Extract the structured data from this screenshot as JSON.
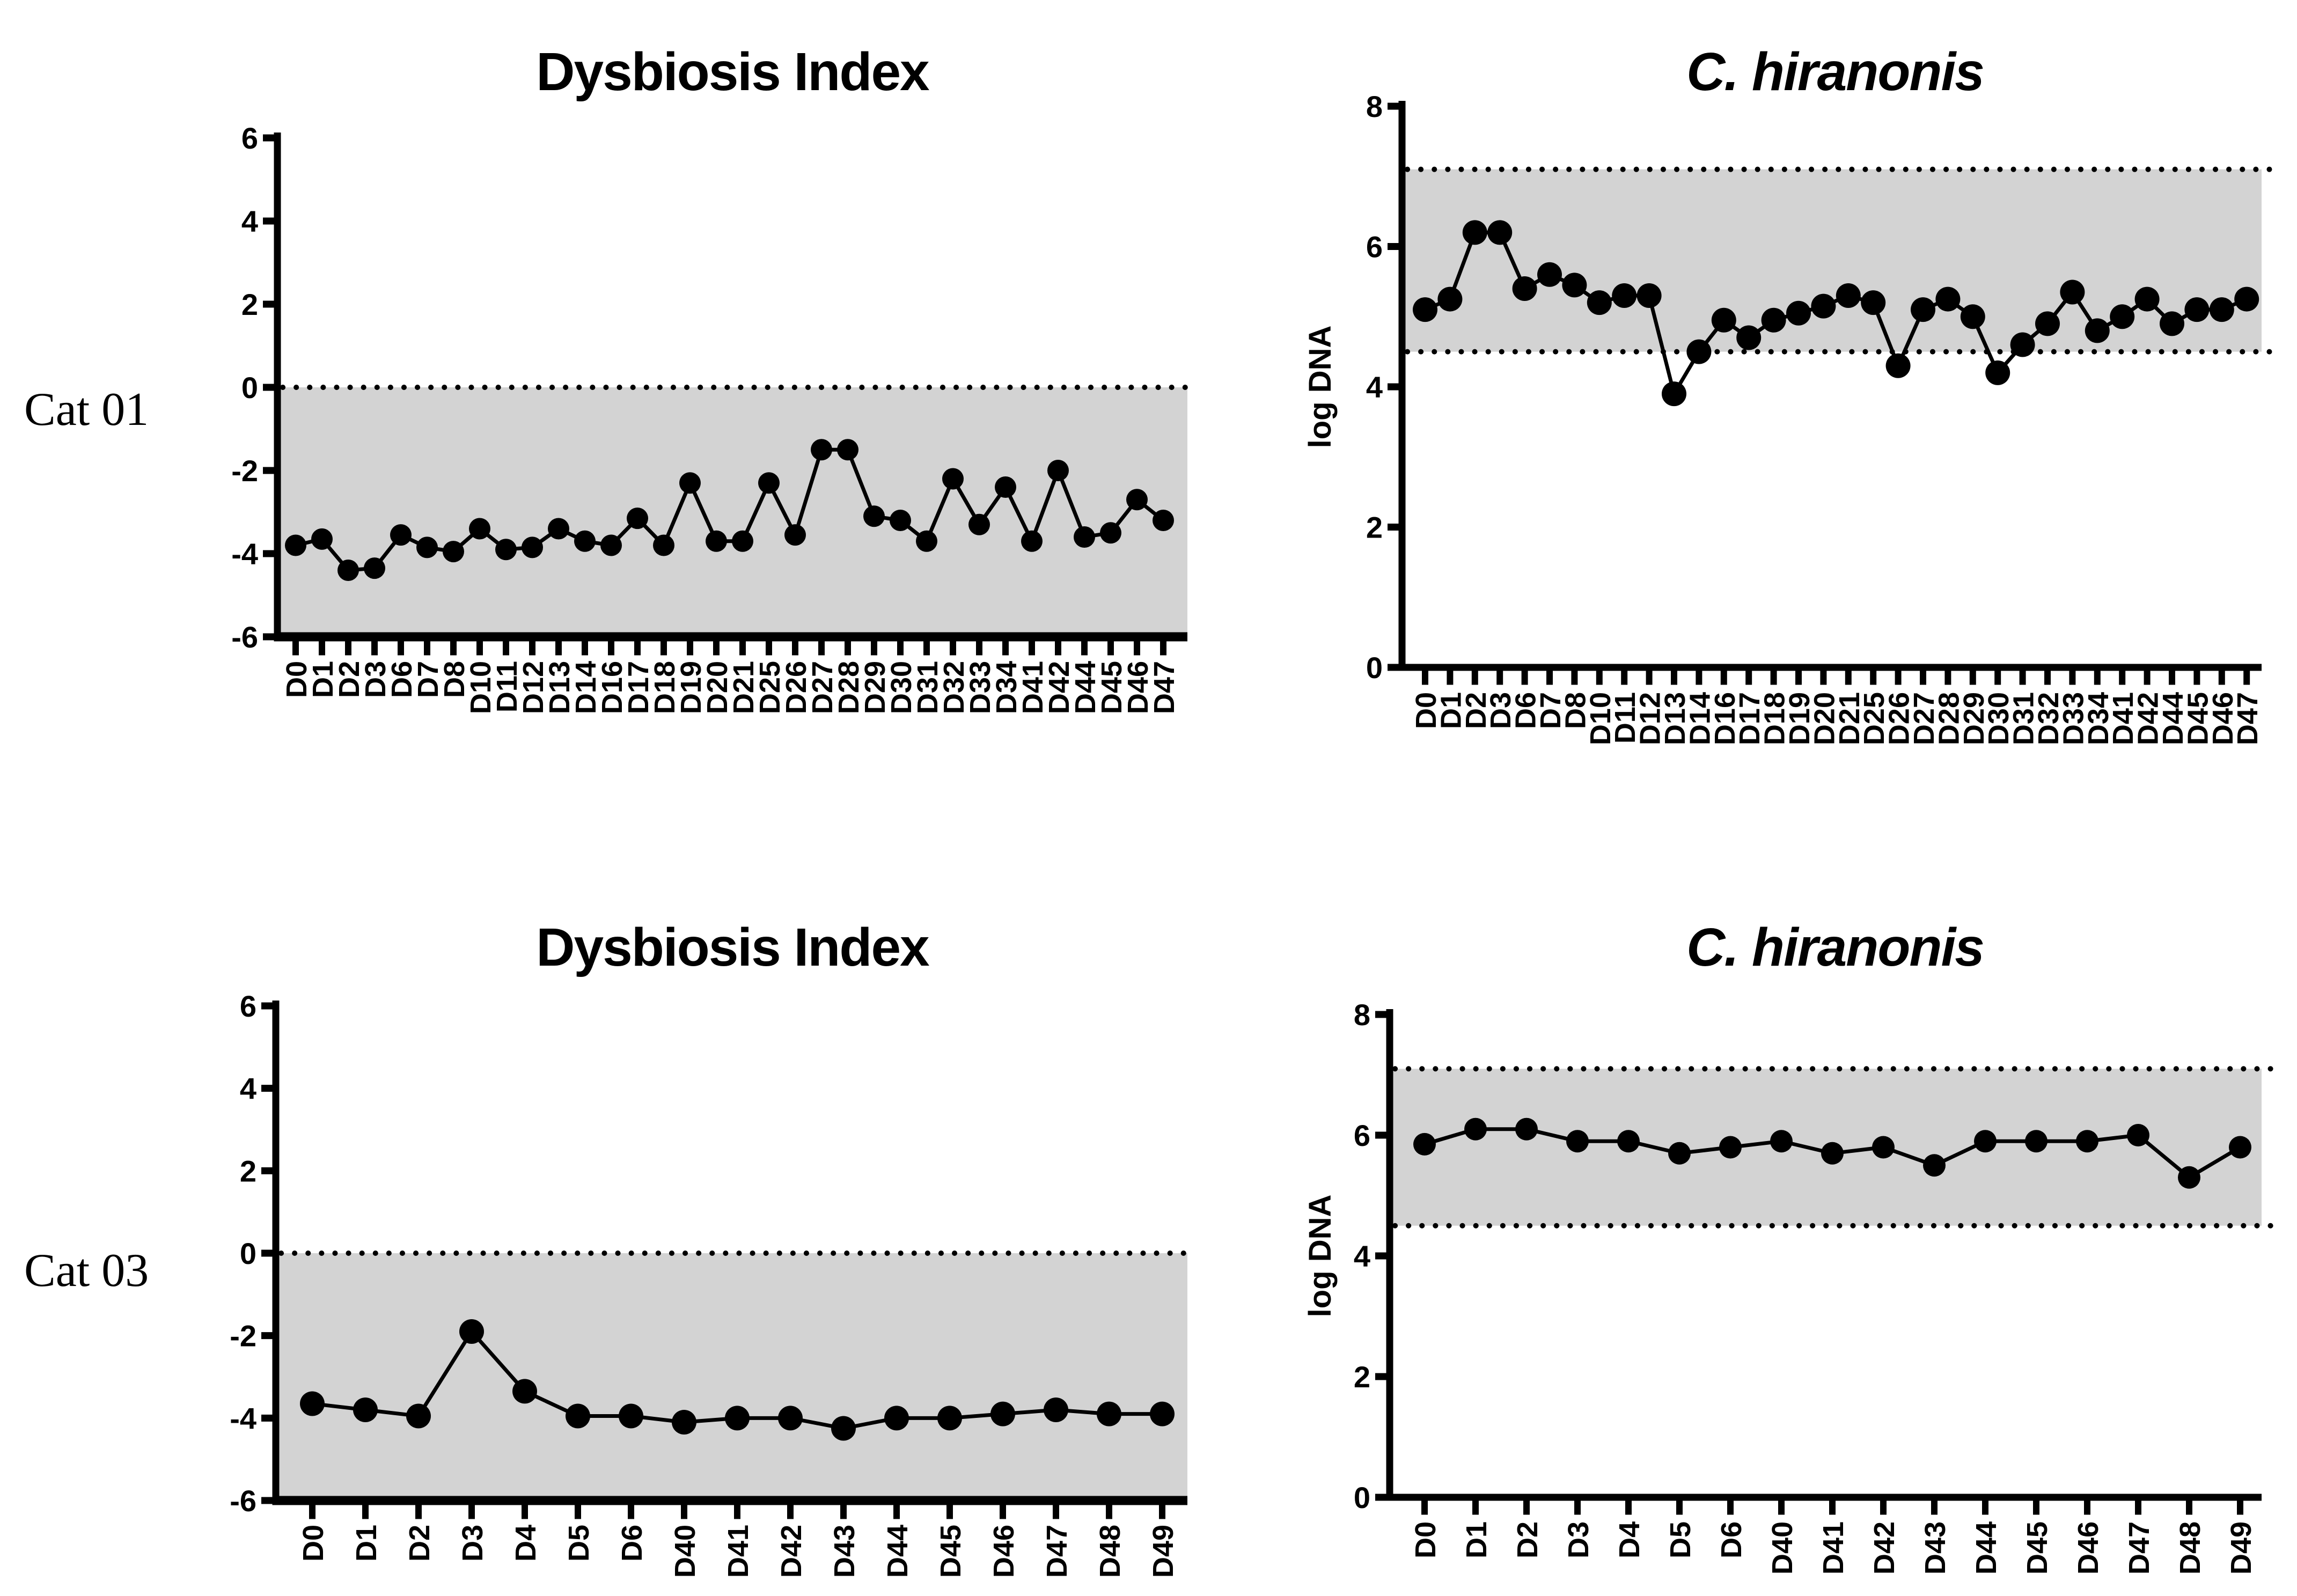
{
  "row_labels": [
    {
      "label": "Cat 01"
    },
    {
      "label": "Cat 03"
    }
  ],
  "colors": {
    "ink": "#000000",
    "shade": "#d3d3d3",
    "background": "#ffffff"
  },
  "chart_data": [
    {
      "type": "line",
      "title": "Dysbiosis Index",
      "title_italic": false,
      "xlabel": "",
      "ylabel": "",
      "row": "Cat 01",
      "y_axis": {
        "min": -6,
        "max": 6,
        "ticks": [
          6,
          4,
          2,
          0,
          -2,
          -4,
          -6
        ]
      },
      "band": {
        "shade_top": 0,
        "shade_bottom": -6,
        "dotted": [
          0
        ]
      },
      "categories": [
        "D0",
        "D1",
        "D2",
        "D3",
        "D6",
        "D7",
        "D8",
        "D10",
        "D11",
        "D12",
        "D13",
        "D14",
        "D16",
        "D17",
        "D18",
        "D19",
        "D20",
        "D21",
        "D25",
        "D26",
        "D27",
        "D28",
        "D29",
        "D30",
        "D31",
        "D32",
        "D33",
        "D34",
        "D41",
        "D42",
        "D44",
        "D45",
        "D46",
        "D47"
      ],
      "values": [
        -3.8,
        -3.65,
        -4.4,
        -4.35,
        -3.55,
        -3.85,
        -3.95,
        -3.4,
        -3.9,
        -3.85,
        -3.4,
        -3.7,
        -3.8,
        -3.15,
        -3.8,
        -2.3,
        -3.7,
        -3.7,
        -2.3,
        -3.55,
        -1.5,
        -1.5,
        -3.1,
        -3.2,
        -3.7,
        -2.2,
        -3.3,
        -2.4,
        -3.7,
        -2.0,
        -3.6,
        -3.5,
        -2.7,
        -3.2
      ]
    },
    {
      "type": "line",
      "title": "C. hiranonis",
      "title_italic": true,
      "xlabel": "",
      "ylabel": "log DNA",
      "row": "Cat 01",
      "y_axis": {
        "min": 0,
        "max": 8,
        "ticks": [
          8,
          6,
          4,
          2,
          0
        ]
      },
      "band": {
        "shade_top": 7.1,
        "shade_bottom": 4.5,
        "dotted": [
          7.1,
          4.5
        ]
      },
      "categories": [
        "D0",
        "D1",
        "D2",
        "D3",
        "D6",
        "D7",
        "D8",
        "D10",
        "D11",
        "D12",
        "D13",
        "D14",
        "D16",
        "D17",
        "D18",
        "D19",
        "D20",
        "D21",
        "D25",
        "D26",
        "D27",
        "D28",
        "D29",
        "D30",
        "D31",
        "D32",
        "D33",
        "D34",
        "D41",
        "D42",
        "D44",
        "D45",
        "D46",
        "D47"
      ],
      "values": [
        5.1,
        5.25,
        6.2,
        6.2,
        5.4,
        5.6,
        5.45,
        5.2,
        5.3,
        5.3,
        3.9,
        4.5,
        4.95,
        4.7,
        4.95,
        5.05,
        5.15,
        5.3,
        5.2,
        4.3,
        5.1,
        5.25,
        5.0,
        4.2,
        4.6,
        4.9,
        5.35,
        4.8,
        5.0,
        5.25,
        4.9,
        5.1,
        5.1,
        5.25
      ]
    },
    {
      "type": "line",
      "title": "Dysbiosis Index",
      "title_italic": false,
      "xlabel": "",
      "ylabel": "",
      "row": "Cat 03",
      "y_axis": {
        "min": -6,
        "max": 6,
        "ticks": [
          6,
          4,
          2,
          0,
          -2,
          -4,
          -6
        ]
      },
      "band": {
        "shade_top": 0,
        "shade_bottom": -6,
        "dotted": [
          0
        ]
      },
      "categories": [
        "D0",
        "D1",
        "D2",
        "D3",
        "D4",
        "D5",
        "D6",
        "D40",
        "D41",
        "D42",
        "D43",
        "D44",
        "D45",
        "D46",
        "D47",
        "D48",
        "D49"
      ],
      "values": [
        -3.65,
        -3.8,
        -3.95,
        -1.9,
        -3.35,
        -3.95,
        -3.95,
        -4.1,
        -4.0,
        -4.0,
        -4.25,
        -4.0,
        -4.0,
        -3.9,
        -3.8,
        -3.9,
        -3.9
      ]
    },
    {
      "type": "line",
      "title": "C. hiranonis",
      "title_italic": true,
      "xlabel": "",
      "ylabel": "log DNA",
      "row": "Cat 03",
      "y_axis": {
        "min": 0,
        "max": 8,
        "ticks": [
          8,
          6,
          4,
          2,
          0
        ]
      },
      "band": {
        "shade_top": 7.1,
        "shade_bottom": 4.5,
        "dotted": [
          7.1,
          4.5
        ]
      },
      "categories": [
        "D0",
        "D1",
        "D2",
        "D3",
        "D4",
        "D5",
        "D6",
        "D40",
        "D41",
        "D42",
        "D43",
        "D44",
        "D45",
        "D46",
        "D47",
        "D48",
        "D49"
      ],
      "values": [
        5.85,
        6.1,
        6.1,
        5.9,
        5.9,
        5.7,
        5.8,
        5.9,
        5.7,
        5.8,
        5.5,
        5.9,
        5.9,
        5.9,
        6.0,
        5.3,
        5.8
      ]
    }
  ]
}
